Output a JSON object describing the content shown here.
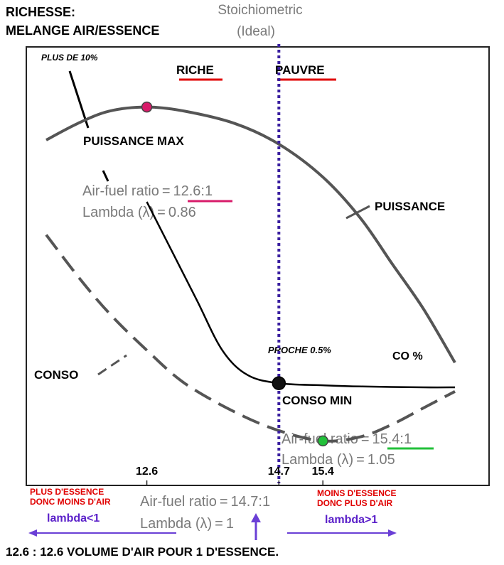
{
  "header": {
    "line1": "RICHESSE:",
    "line2": "MELANGE AIR/ESSENCE"
  },
  "stoich": {
    "line1": "Stoichiometric",
    "line2": "(Ideal)"
  },
  "zones": {
    "riche": "RICHE",
    "pauvre": "PAUVRE"
  },
  "annotations": {
    "plus10": "PLUS DE 10%",
    "puissance_max": "PUISSANCE MAX",
    "puissance": "PUISSANCE",
    "proche": "PROCHE 0.5%",
    "co": "CO %",
    "conso": "CONSO",
    "conso_min": "CONSO MIN",
    "max_afr_label": "Air-fuel ratio = ",
    "max_afr_value": "12.6:1",
    "max_lambda": "Lambda (λ) = 0.86",
    "min_afr_label": "Air-fuel ratio = ",
    "min_afr_value": "15.4:1",
    "min_lambda": "Lambda (λ) = 1.05",
    "stoich_afr": "Air-fuel ratio = 14.7:1",
    "stoich_lambda": "Lambda (λ) = 1"
  },
  "bottom": {
    "left_line1": "PLUS D'ESSENCE",
    "left_line2": "DONC MOINS D'AIR",
    "left_lambda": "lambda<1",
    "right_line1": "MOINS D'ESSENCE",
    "right_line2": "DONC PLUS D'AIR",
    "right_lambda": "lambda>1",
    "footnote": "12.6 : 12.6 VOLUME D'AIR POUR 1 D'ESSENCE."
  },
  "colors": {
    "curve": "#555555",
    "stoich_line": "#3a1fa0",
    "max_point": "#d81b6a",
    "min_point": "#22c03a",
    "max_underline": "#d81b6a",
    "min_underline": "#22c03a",
    "zone_underline": "#e00000",
    "arrow": "#6a3fd6"
  },
  "chart_data": {
    "type": "line",
    "title": "",
    "xlabel": "Air-fuel ratio",
    "ylabel": "",
    "grid": false,
    "x_ticks": [
      "12.6",
      "14.7",
      "15.4"
    ],
    "series": [
      {
        "name": "PUISSANCE",
        "style": "solid",
        "x": [
          11.0,
          11.5,
          12.0,
          12.6,
          13.2,
          14.0,
          14.7,
          15.4,
          16.0,
          16.5,
          17.0,
          17.5
        ],
        "y": [
          0.85,
          0.89,
          0.92,
          0.93,
          0.92,
          0.89,
          0.84,
          0.76,
          0.66,
          0.55,
          0.44,
          0.31
        ]
      },
      {
        "name": "CO %",
        "style": "solid",
        "x": [
          12.6,
          13.0,
          13.4,
          13.8,
          14.2,
          14.7,
          15.4,
          16.0,
          17.0,
          17.5
        ],
        "y": [
          0.7,
          0.58,
          0.46,
          0.34,
          0.28,
          0.26,
          0.255,
          0.252,
          0.25,
          0.25
        ]
      },
      {
        "name": "CONSO",
        "style": "dashed",
        "x": [
          11.0,
          11.5,
          12.0,
          12.6,
          13.2,
          14.0,
          14.7,
          15.4,
          16.0,
          16.5,
          17.0,
          17.5
        ],
        "y": [
          0.62,
          0.52,
          0.43,
          0.34,
          0.26,
          0.19,
          0.145,
          0.12,
          0.13,
          0.16,
          0.2,
          0.24
        ]
      }
    ],
    "points": [
      {
        "name": "PUISSANCE MAX",
        "x": 12.6,
        "y": 0.93
      },
      {
        "name": "PROCHE 0.5%",
        "x": 14.7,
        "y": 0.26
      },
      {
        "name": "CONSO MIN",
        "x": 15.4,
        "y": 0.12
      }
    ]
  }
}
